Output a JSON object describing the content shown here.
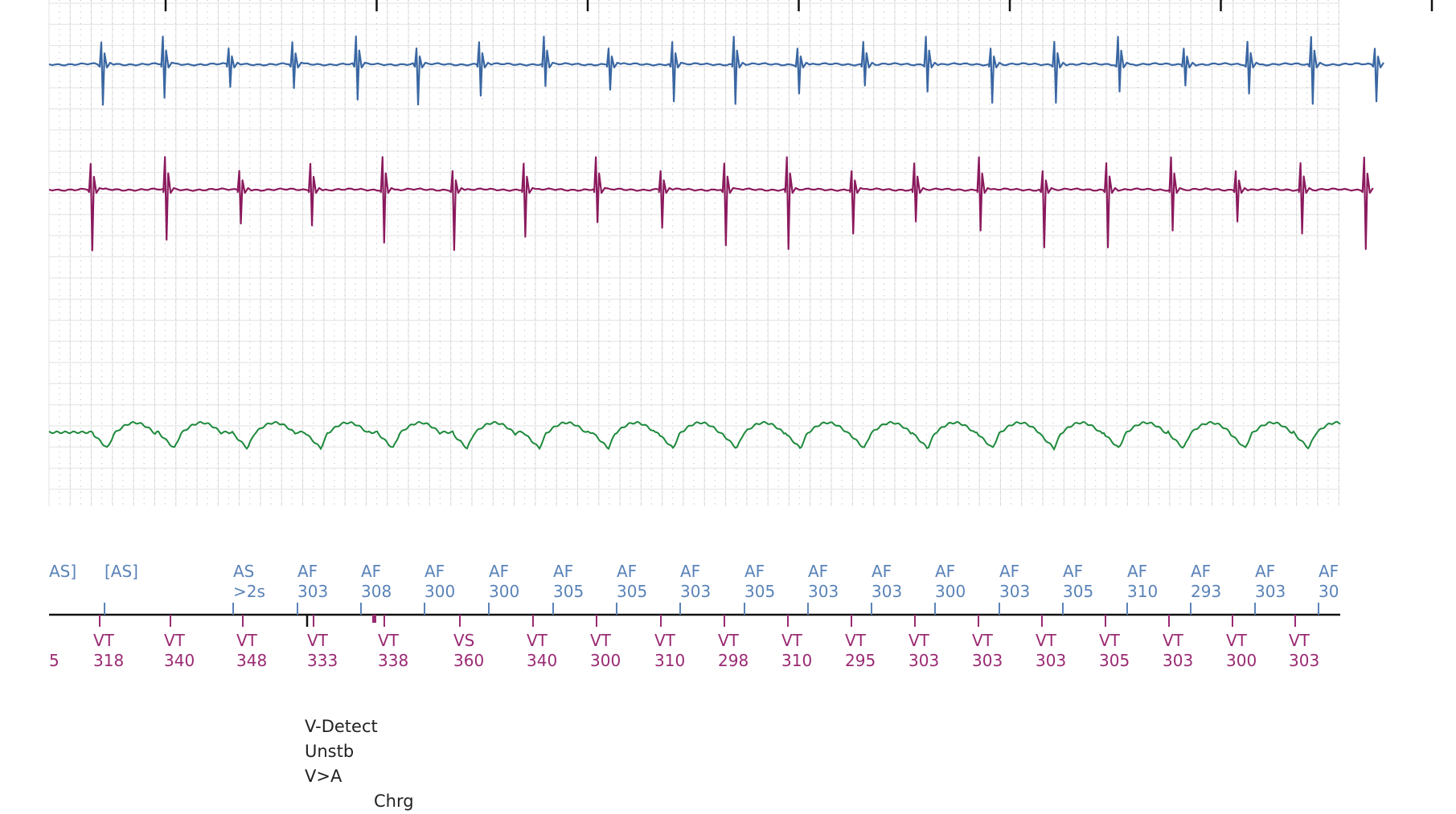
{
  "colors": {
    "atrial_egm": "#3a67a3",
    "ventricular_egm": "#8b1a5e",
    "far_field_egm": "#1e8a3c",
    "atrial_markers": "#5a83b8",
    "ventricular_markers": "#9a2a73",
    "grid_major": "#e2e2e2",
    "grid_minor": "#c8c8c8",
    "text": "#222222"
  },
  "chart_data": {
    "type": "line",
    "channels": [
      {
        "channel": "atrial",
        "beats": [
          0.5,
          1.08,
          1.7,
          2.3,
          2.9,
          3.47,
          4.06,
          4.67,
          5.28,
          5.88,
          6.46,
          7.06,
          7.68,
          8.27,
          8.88,
          9.48,
          10.08,
          10.7,
          11.3,
          11.9,
          12.5
        ]
      },
      {
        "channel": "ventricular",
        "beats": [
          0.4,
          1.1,
          1.8,
          2.47,
          3.15,
          3.81,
          4.48,
          5.16,
          5.77,
          6.37,
          6.96,
          7.57,
          8.16,
          8.77,
          9.37,
          9.97,
          10.58,
          11.19,
          11.8,
          12.4
        ]
      },
      {
        "channel": "far-field",
        "beats": [
          0.55,
          1.18,
          1.87,
          2.56,
          3.24,
          3.94,
          4.62,
          5.27,
          5.88,
          6.48,
          7.08,
          7.68,
          8.28,
          8.89,
          9.47,
          10.08,
          10.69,
          11.27,
          11.87,
          12.47
        ]
      }
    ],
    "atrial_markers": [
      {
        "code": "AS]",
        "interval": ""
      },
      {
        "code": "[AS]",
        "interval": ""
      },
      {
        "code": "AS",
        "interval": ">2s"
      },
      {
        "code": "AF",
        "interval": "303"
      },
      {
        "code": "AF",
        "interval": "308"
      },
      {
        "code": "AF",
        "interval": "300"
      },
      {
        "code": "AF",
        "interval": "300"
      },
      {
        "code": "AF",
        "interval": "305"
      },
      {
        "code": "AF",
        "interval": "305"
      },
      {
        "code": "AF",
        "interval": "303"
      },
      {
        "code": "AF",
        "interval": "305"
      },
      {
        "code": "AF",
        "interval": "303"
      },
      {
        "code": "AF",
        "interval": "303"
      },
      {
        "code": "AF",
        "interval": "300"
      },
      {
        "code": "AF",
        "interval": "303"
      },
      {
        "code": "AF",
        "interval": "305"
      },
      {
        "code": "AF",
        "interval": "310"
      },
      {
        "code": "AF",
        "interval": "293"
      },
      {
        "code": "AF",
        "interval": "303"
      },
      {
        "code": "AF",
        "interval": "30"
      }
    ],
    "ventricular_markers": [
      {
        "code": "",
        "interval": "5"
      },
      {
        "code": "VT",
        "interval": "318"
      },
      {
        "code": "VT",
        "interval": "340"
      },
      {
        "code": "VT",
        "interval": "348"
      },
      {
        "code": "VT",
        "interval": "333"
      },
      {
        "code": "VT",
        "interval": "338"
      },
      {
        "code": "VS",
        "interval": "360"
      },
      {
        "code": "VT",
        "interval": "340"
      },
      {
        "code": "VT",
        "interval": "300"
      },
      {
        "code": "VT",
        "interval": "310"
      },
      {
        "code": "VT",
        "interval": "298"
      },
      {
        "code": "VT",
        "interval": "310"
      },
      {
        "code": "VT",
        "interval": "295"
      },
      {
        "code": "VT",
        "interval": "303"
      },
      {
        "code": "VT",
        "interval": "303"
      },
      {
        "code": "VT",
        "interval": "303"
      },
      {
        "code": "VT",
        "interval": "305"
      },
      {
        "code": "VT",
        "interval": "303"
      },
      {
        "code": "VT",
        "interval": "300"
      },
      {
        "code": "VT",
        "interval": "303"
      }
    ],
    "events": [
      "V-Detect",
      "Unstb",
      "V>A",
      "Chrg"
    ]
  }
}
